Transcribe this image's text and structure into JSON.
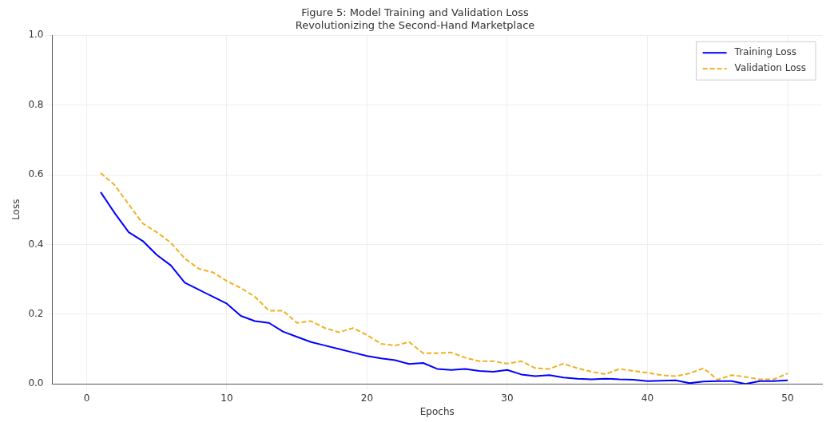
{
  "chart_data": {
    "type": "line",
    "title": "Figure 5: Model Training and Validation Loss",
    "subtitle": "Revolutionizing the Second-Hand Marketplace",
    "xlabel": "Epochs",
    "ylabel": "Loss",
    "x": [
      1,
      2,
      3,
      4,
      5,
      6,
      7,
      8,
      9,
      10,
      11,
      12,
      13,
      14,
      15,
      16,
      17,
      18,
      19,
      20,
      21,
      22,
      23,
      24,
      25,
      26,
      27,
      28,
      29,
      30,
      31,
      32,
      33,
      34,
      35,
      36,
      37,
      38,
      39,
      40,
      41,
      42,
      43,
      44,
      45,
      46,
      47,
      48,
      49,
      50
    ],
    "series": [
      {
        "name": "Training Loss",
        "color": "#0000ff",
        "line_style": "solid",
        "values": [
          0.55,
          0.49,
          0.435,
          0.41,
          0.37,
          0.34,
          0.29,
          0.27,
          0.25,
          0.23,
          0.195,
          0.18,
          0.175,
          0.15,
          0.135,
          0.12,
          0.11,
          0.1,
          0.09,
          0.08,
          0.073,
          0.068,
          0.057,
          0.06,
          0.043,
          0.04,
          0.043,
          0.037,
          0.035,
          0.04,
          0.027,
          0.022,
          0.025,
          0.018,
          0.015,
          0.013,
          0.015,
          0.013,
          0.012,
          0.008,
          0.009,
          0.01,
          0.002,
          0.007,
          0.008,
          0.008,
          0.0,
          0.008,
          0.008,
          0.01
        ]
      },
      {
        "name": "Validation Loss",
        "color": "#f0b020",
        "line_style": "dashed",
        "values": [
          0.605,
          0.57,
          0.515,
          0.46,
          0.435,
          0.405,
          0.36,
          0.33,
          0.32,
          0.295,
          0.275,
          0.25,
          0.21,
          0.21,
          0.175,
          0.18,
          0.16,
          0.148,
          0.16,
          0.14,
          0.115,
          0.11,
          0.12,
          0.088,
          0.088,
          0.09,
          0.075,
          0.065,
          0.065,
          0.058,
          0.065,
          0.045,
          0.043,
          0.058,
          0.045,
          0.035,
          0.028,
          0.043,
          0.037,
          0.032,
          0.025,
          0.022,
          0.03,
          0.045,
          0.012,
          0.025,
          0.02,
          0.013,
          0.013,
          0.03
        ]
      }
    ],
    "xlim": [
      -2.45,
      52.45
    ],
    "xticks": [
      0,
      10,
      20,
      30,
      40,
      50
    ],
    "ylim": [
      0,
      1
    ],
    "yticks": [
      {
        "value": 0,
        "label": "0.0"
      },
      0.2,
      0.4,
      0.6,
      0.8,
      {
        "value": 1,
        "label": "1.0"
      }
    ],
    "grid": true,
    "legend": "top right",
    "marker": "none"
  }
}
